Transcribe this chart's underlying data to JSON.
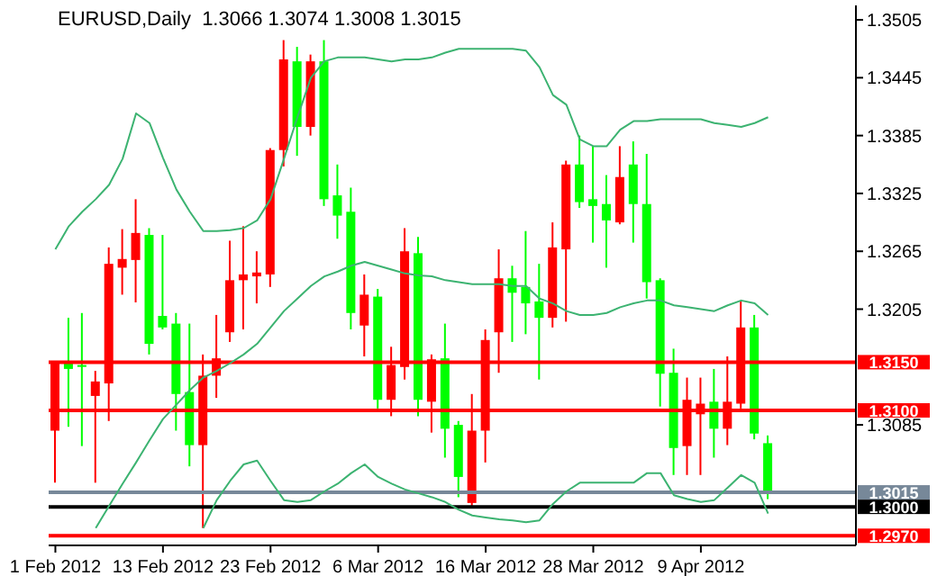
{
  "chart_data": {
    "type": "candlestick",
    "title": "EURUSD,Daily  1.3066 1.3074 1.3008 1.3015",
    "categories": [
      "1 Feb 2012",
      null,
      null,
      null,
      null,
      null,
      null,
      null,
      "13 Feb 2012",
      null,
      null,
      null,
      null,
      null,
      null,
      null,
      "23 Feb 2012",
      null,
      null,
      null,
      null,
      null,
      null,
      null,
      "6 Mar 2012",
      null,
      null,
      null,
      null,
      null,
      null,
      null,
      "16 Mar 2012",
      null,
      null,
      null,
      null,
      null,
      null,
      null,
      "28 Mar 2012",
      null,
      null,
      null,
      null,
      null,
      null,
      null,
      "9 Apr 2012",
      null,
      null,
      null,
      null,
      null
    ],
    "ohlc": [
      [
        1.3079,
        1.3151,
        1.3025,
        1.3151
      ],
      [
        1.3151,
        1.3196,
        1.3083,
        1.3143
      ],
      [
        1.3147,
        1.3201,
        1.3063,
        1.3146
      ],
      [
        1.3115,
        1.3141,
        1.3025,
        1.313
      ],
      [
        1.3128,
        1.3269,
        1.3089,
        1.3252
      ],
      [
        1.3248,
        1.3288,
        1.322,
        1.3257
      ],
      [
        1.3256,
        1.3319,
        1.3212,
        1.3284
      ],
      [
        1.3282,
        1.3289,
        1.3158,
        1.3169
      ],
      [
        1.3198,
        1.3282,
        1.3184,
        1.3186
      ],
      [
        1.319,
        1.3201,
        1.3079,
        1.3117
      ],
      [
        1.3119,
        1.319,
        1.3042,
        1.3064
      ],
      [
        1.3064,
        1.3158,
        1.2978,
        1.3136
      ],
      [
        1.3136,
        1.3199,
        1.3113,
        1.3154
      ],
      [
        1.3181,
        1.3276,
        1.3171,
        1.3235
      ],
      [
        1.3235,
        1.3291,
        1.3184,
        1.3241
      ],
      [
        1.3239,
        1.3265,
        1.3211,
        1.3243
      ],
      [
        1.3241,
        1.3372,
        1.3228,
        1.337
      ],
      [
        1.337,
        1.3484,
        1.3353,
        1.3464
      ],
      [
        1.3462,
        1.3477,
        1.3364,
        1.3394
      ],
      [
        1.3394,
        1.3469,
        1.3385,
        1.3462
      ],
      [
        1.3462,
        1.3484,
        1.3312,
        1.3319
      ],
      [
        1.3323,
        1.3355,
        1.3278,
        1.3302
      ],
      [
        1.3306,
        1.3331,
        1.3184,
        1.3201
      ],
      [
        1.3188,
        1.3241,
        1.3156,
        1.322
      ],
      [
        1.3218,
        1.3226,
        1.3102,
        1.3111
      ],
      [
        1.3111,
        1.3166,
        1.3094,
        1.3147
      ],
      [
        1.3145,
        1.3289,
        1.3132,
        1.3265
      ],
      [
        1.3263,
        1.328,
        1.3094,
        1.3111
      ],
      [
        1.3109,
        1.3158,
        1.3077,
        1.3153
      ],
      [
        1.3154,
        1.319,
        1.3051,
        1.3081
      ],
      [
        1.3085,
        1.3089,
        1.301,
        1.3031
      ],
      [
        1.3004,
        1.3117,
        1.3001,
        1.3079
      ],
      [
        1.3079,
        1.3184,
        1.3046,
        1.3173
      ],
      [
        1.3181,
        1.3267,
        1.3139,
        1.3237
      ],
      [
        1.3237,
        1.325,
        1.3171,
        1.3222
      ],
      [
        1.3228,
        1.3286,
        1.3179,
        1.3211
      ],
      [
        1.3213,
        1.3252,
        1.3132,
        1.3196
      ],
      [
        1.3196,
        1.3295,
        1.3186,
        1.3269
      ],
      [
        1.3267,
        1.3359,
        1.3192,
        1.3355
      ],
      [
        1.3355,
        1.3385,
        1.331,
        1.3316
      ],
      [
        1.3319,
        1.3374,
        1.3274,
        1.3312
      ],
      [
        1.3314,
        1.3344,
        1.3248,
        1.3297
      ],
      [
        1.3295,
        1.3374,
        1.3293,
        1.3342
      ],
      [
        1.3355,
        1.3379,
        1.3274,
        1.3314
      ],
      [
        1.3314,
        1.3366,
        1.3216,
        1.3233
      ],
      [
        1.3235,
        1.3237,
        1.3104,
        1.3138
      ],
      [
        1.3139,
        1.3164,
        1.3033,
        1.3061
      ],
      [
        1.3063,
        1.3134,
        1.3033,
        1.3111
      ],
      [
        1.3096,
        1.3134,
        1.3033,
        1.3107
      ],
      [
        1.3109,
        1.3143,
        1.3051,
        1.3081
      ],
      [
        1.3081,
        1.3156,
        1.3064,
        1.3109
      ],
      [
        1.3107,
        1.3214,
        1.3102,
        1.3186
      ],
      [
        1.3186,
        1.3199,
        1.307,
        1.3076
      ],
      [
        1.3066,
        1.3074,
        1.3008,
        1.3015
      ]
    ],
    "colors": [
      "#ff0000",
      "#00ff00",
      "#00ff00",
      "#ff0000",
      "#ff0000",
      "#ff0000",
      "#ff0000",
      "#00ff00",
      "#00ff00",
      "#00ff00",
      "#00ff00",
      "#ff0000",
      "#ff0000",
      "#ff0000",
      "#ff0000",
      "#ff0000",
      "#ff0000",
      "#ff0000",
      "#00ff00",
      "#ff0000",
      "#00ff00",
      "#00ff00",
      "#00ff00",
      "#ff0000",
      "#00ff00",
      "#ff0000",
      "#ff0000",
      "#00ff00",
      "#ff0000",
      "#00ff00",
      "#00ff00",
      "#ff0000",
      "#ff0000",
      "#ff0000",
      "#00ff00",
      "#00ff00",
      "#00ff00",
      "#ff0000",
      "#ff0000",
      "#00ff00",
      "#00ff00",
      "#00ff00",
      "#ff0000",
      "#00ff00",
      "#00ff00",
      "#00ff00",
      "#00ff00",
      "#ff0000",
      "#ff0000",
      "#00ff00",
      "#ff0000",
      "#ff0000",
      "#00ff00",
      "#00ff00"
    ],
    "series": [
      {
        "type": "line",
        "color": "#3cb371",
        "values": [
          1.3267,
          1.3291,
          1.3306,
          1.3319,
          1.3334,
          1.3361,
          1.3408,
          1.3398,
          1.3362,
          1.3329,
          1.3306,
          1.3286,
          1.3286,
          1.3287,
          1.3289,
          1.3297,
          1.3319,
          1.3361,
          1.3404,
          1.3445,
          1.3462,
          1.3466,
          1.3466,
          1.3466,
          1.3464,
          1.3462,
          1.3464,
          1.3464,
          1.3466,
          1.3471,
          1.3475,
          1.3475,
          1.3475,
          1.3475,
          1.3475,
          1.3473,
          1.3456,
          1.3427,
          1.3417,
          1.3381,
          1.3374,
          1.3374,
          1.3391,
          1.34,
          1.34,
          1.3402,
          1.3402,
          1.3402,
          1.3402,
          1.3398,
          1.3396,
          1.3394,
          1.3398,
          1.3404
        ]
      },
      {
        "type": "line",
        "color": "#3cb371",
        "values": [
          null,
          null,
          null,
          1.2978,
          1.3001,
          1.3024,
          1.3046,
          1.3069,
          1.3091,
          1.3106,
          1.3121,
          1.3134,
          1.3141,
          1.3149,
          1.3158,
          1.3169,
          1.3186,
          1.3203,
          1.3216,
          1.3229,
          1.3239,
          1.3244,
          1.325,
          1.3254,
          1.325,
          1.3246,
          1.3242,
          1.324,
          1.3239,
          1.3235,
          1.3233,
          1.3231,
          1.3231,
          1.3231,
          1.3229,
          1.3229,
          1.3216,
          1.3211,
          1.3203,
          1.3199,
          1.3199,
          1.3201,
          1.3207,
          1.3211,
          1.3214,
          1.3214,
          1.3209,
          1.3207,
          1.3205,
          1.3203,
          1.3209,
          1.3214,
          1.3211,
          1.3199
        ]
      },
      {
        "type": "line",
        "color": "#3cb371",
        "values": [
          null,
          null,
          null,
          null,
          null,
          null,
          null,
          null,
          null,
          null,
          null,
          1.2978,
          1.3007,
          1.3027,
          1.3044,
          1.3048,
          1.3027,
          1.3007,
          1.3005,
          1.3007,
          1.3016,
          1.3024,
          1.3035,
          1.3044,
          1.3031,
          1.3024,
          1.3018,
          1.3014,
          1.301,
          1.3005,
          1.2997,
          1.2991,
          1.2989,
          1.2987,
          1.2986,
          1.2984,
          1.2986,
          1.3003,
          1.3016,
          1.3025,
          1.3025,
          1.3025,
          1.3025,
          1.3025,
          1.3035,
          1.3035,
          1.3012,
          1.3008,
          1.3005,
          1.3007,
          1.302,
          1.3033,
          1.3025,
          1.2993
        ]
      }
    ],
    "ylim": [
      1.296,
      1.352
    ],
    "yticks": [
      1.3085,
      1.3205,
      1.3265,
      1.3325,
      1.3385,
      1.3445,
      1.3505
    ],
    "ref_lines": [
      {
        "axis": "y",
        "value": 1.315,
        "label": "1.3150",
        "color": "#ff0000"
      },
      {
        "axis": "y",
        "value": 1.31,
        "label": "1.3100",
        "color": "#ff0000"
      },
      {
        "axis": "y",
        "value": 1.3015,
        "label": "1.3015",
        "color": "#778899"
      },
      {
        "axis": "y",
        "value": 1.3,
        "label": "1.3000",
        "color": "#000000"
      },
      {
        "axis": "y",
        "value": 1.297,
        "label": "1.2970",
        "color": "#ff0000"
      }
    ]
  }
}
